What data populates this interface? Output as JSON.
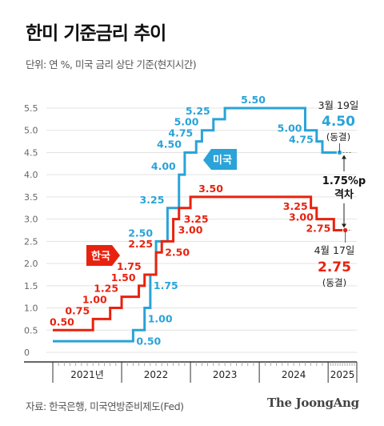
{
  "header": {
    "title": "한미 기준금리 추이",
    "subtitle": "단위: 연 %, 미국 금리 상단 기준(현지시간)"
  },
  "footer": {
    "source": "자료: 한국은행, 미국연방준비제도(Fed)",
    "logo": "The JoongAng"
  },
  "colors": {
    "us": "#2aa3d8",
    "kr": "#e8220f",
    "grid": "#e3e3e3",
    "axis": "#333333"
  },
  "chart_data": {
    "type": "line",
    "step": true,
    "ylim": [
      0,
      5.5
    ],
    "yticks": [
      {
        "v": 0,
        "label": "0"
      },
      {
        "v": 0.5,
        "label": "0.5"
      },
      {
        "v": 1.0,
        "label": "1.0"
      },
      {
        "v": 1.5,
        "label": "1.5"
      },
      {
        "v": 2.0,
        "label": "2.0"
      },
      {
        "v": 2.5,
        "label": "2.5"
      },
      {
        "v": 3.0,
        "label": "3.0"
      },
      {
        "v": 3.5,
        "label": "3.5"
      },
      {
        "v": 4.0,
        "label": "4.0"
      },
      {
        "v": 4.5,
        "label": "4.5"
      },
      {
        "v": 5.0,
        "label": "5.0"
      },
      {
        "v": 5.5,
        "label": "5.5"
      }
    ],
    "xlim": [
      "2021-01",
      "2025-06"
    ],
    "xticks": [
      {
        "label": "2021년",
        "start": "2021-01",
        "end": "2022-01"
      },
      {
        "label": "2022",
        "start": "2022-01",
        "end": "2023-01"
      },
      {
        "label": "2023",
        "start": "2023-01",
        "end": "2024-01"
      },
      {
        "label": "2024",
        "start": "2024-01",
        "end": "2025-01"
      },
      {
        "label": "2025",
        "start": "2025-01",
        "end": "2025-06"
      }
    ],
    "series": [
      {
        "name": "미국",
        "color": "#2aa3d8",
        "points": [
          {
            "date": "2021-01",
            "value": 0.25
          },
          {
            "date": "2022-03",
            "value": 0.5,
            "label": "0.50"
          },
          {
            "date": "2022-05",
            "value": 1.0,
            "label": "1.00"
          },
          {
            "date": "2022-06",
            "value": 1.75,
            "label": "1.75"
          },
          {
            "date": "2022-07",
            "value": 2.5,
            "label": "2.50"
          },
          {
            "date": "2022-09",
            "value": 3.25,
            "label": "3.25"
          },
          {
            "date": "2022-11",
            "value": 4.0,
            "label": "4.00"
          },
          {
            "date": "2022-12",
            "value": 4.5,
            "label": "4.50"
          },
          {
            "date": "2023-02",
            "value": 4.75,
            "label": "4.75"
          },
          {
            "date": "2023-03",
            "value": 5.0,
            "label": "5.00"
          },
          {
            "date": "2023-05",
            "value": 5.25,
            "label": "5.25"
          },
          {
            "date": "2023-07",
            "value": 5.5,
            "label": "5.50"
          },
          {
            "date": "2024-09",
            "value": 5.0,
            "label": "5.00"
          },
          {
            "date": "2024-11",
            "value": 4.75,
            "label": "4.75"
          },
          {
            "date": "2024-12",
            "value": 4.5
          },
          {
            "date": "2025-03",
            "value": 4.5
          }
        ]
      },
      {
        "name": "한국",
        "color": "#e8220f",
        "points": [
          {
            "date": "2021-01",
            "value": 0.5,
            "label": "0.50"
          },
          {
            "date": "2021-08",
            "value": 0.75,
            "label": "0.75"
          },
          {
            "date": "2021-11",
            "value": 1.0,
            "label": "1.00"
          },
          {
            "date": "2022-01",
            "value": 1.25,
            "label": "1.25"
          },
          {
            "date": "2022-04",
            "value": 1.5,
            "label": "1.50"
          },
          {
            "date": "2022-05",
            "value": 1.75,
            "label": "1.75"
          },
          {
            "date": "2022-07",
            "value": 2.25,
            "label": "2.25"
          },
          {
            "date": "2022-08",
            "value": 2.5,
            "label": "2.50"
          },
          {
            "date": "2022-10",
            "value": 3.0,
            "label": "3.00"
          },
          {
            "date": "2022-11",
            "value": 3.25,
            "label": "3.25"
          },
          {
            "date": "2023-01",
            "value": 3.5,
            "label": "3.50"
          },
          {
            "date": "2024-10",
            "value": 3.25,
            "label": "3.25"
          },
          {
            "date": "2024-11",
            "value": 3.0,
            "label": "3.00"
          },
          {
            "date": "2025-02",
            "value": 2.75,
            "label": "2.75"
          },
          {
            "date": "2025-04",
            "value": 2.75
          }
        ]
      }
    ],
    "series_tags": {
      "us": "미국",
      "kr": "한국"
    },
    "annotations": {
      "us_date": "3월 19일",
      "us_value": "4.50",
      "us_note": "(동결)",
      "kr_date": "4월 17일",
      "kr_value": "2.75",
      "kr_note": "(동결)",
      "gap_line1": "1.75%p",
      "gap_line2": "격차"
    }
  }
}
